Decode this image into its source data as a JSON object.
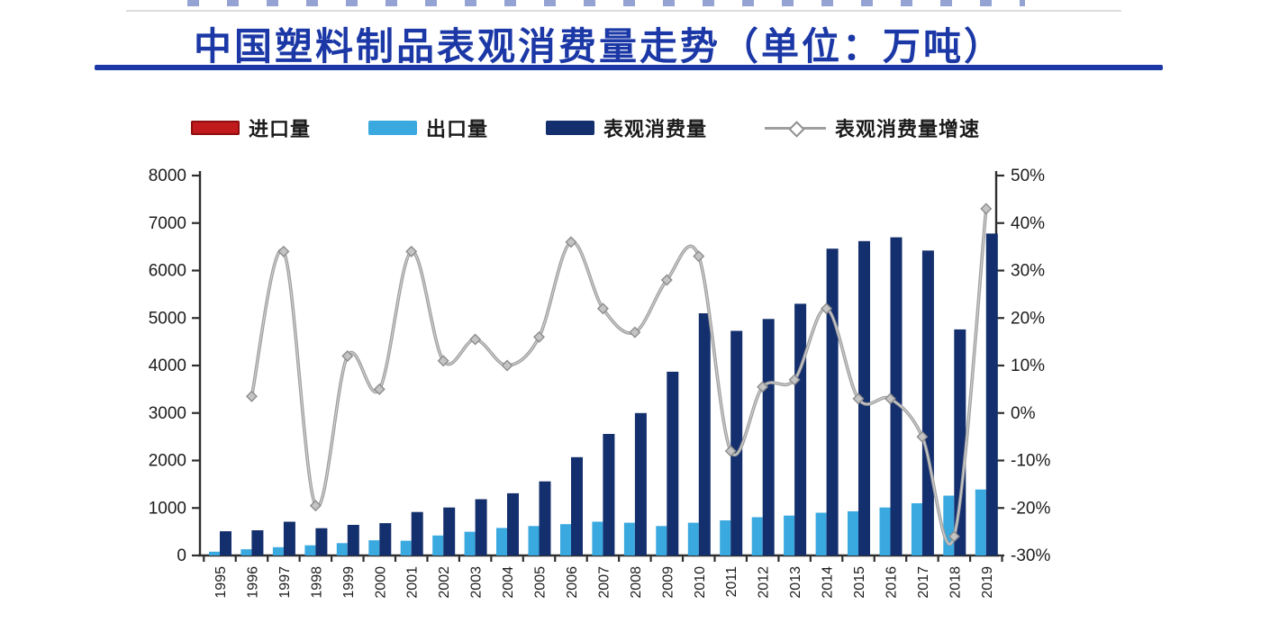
{
  "header": {
    "title": "中国塑料制品表观消费量走势（单位：万吨）",
    "title_color": "#1b38a6",
    "underline_color": "#1b38a6"
  },
  "legend": {
    "position": "top",
    "items": [
      {
        "label": "进口量",
        "swatch": "red-bar",
        "color": "#c11a1c"
      },
      {
        "label": "出口量",
        "swatch": "lightblue-bar",
        "color": "#3aa9e0"
      },
      {
        "label": "表观消费量",
        "swatch": "navy-bar",
        "color": "#142f6d"
      },
      {
        "label": "表观消费量增速",
        "swatch": "gray-line-diamond",
        "color": "#9f9f9f"
      }
    ]
  },
  "chart_data": {
    "type": "bar+line",
    "title": "中国塑料制品表观消费量走势（单位：万吨）",
    "unit": "万吨",
    "grid": false,
    "legend_position": "top",
    "categories": [
      "1995",
      "1996",
      "1997",
      "1998",
      "1999",
      "2000",
      "2001",
      "2002",
      "2003",
      "2004",
      "2005",
      "2006",
      "2007",
      "2008",
      "2009",
      "2010",
      "2011",
      "2012",
      "2013",
      "2014",
      "2015",
      "2016",
      "2017",
      "2018",
      "2019"
    ],
    "left_axis": {
      "min": 0,
      "max": 8000,
      "step": 1000,
      "ticks": [
        0,
        1000,
        2000,
        3000,
        4000,
        5000,
        6000,
        7000,
        8000
      ],
      "label_format": "number"
    },
    "right_axis": {
      "min": -30,
      "max": 50,
      "step": 10,
      "ticks": [
        50,
        40,
        30,
        20,
        10,
        0,
        -10,
        -20,
        -30
      ],
      "label_format": "percent"
    },
    "series": [
      {
        "name": "进口量",
        "type": "bar",
        "axis": "left",
        "color": "#c11a1c",
        "values": [],
        "note": "import bars are too small to be visible in the image (values ~0 at this scale)"
      },
      {
        "name": "出口量",
        "type": "bar",
        "axis": "left",
        "color": "#3aa9e0",
        "values": [
          80,
          130,
          175,
          215,
          260,
          320,
          310,
          420,
          500,
          580,
          620,
          660,
          710,
          690,
          620,
          690,
          740,
          805,
          840,
          900,
          930,
          1010,
          1100,
          1260,
          1390
        ]
      },
      {
        "name": "表观消费量",
        "type": "bar",
        "axis": "left",
        "color": "#142f6d",
        "values": [
          510,
          530,
          710,
          575,
          645,
          680,
          915,
          1010,
          1185,
          1310,
          1560,
          2070,
          2560,
          3000,
          3870,
          5100,
          4730,
          4980,
          5300,
          6460,
          6620,
          6700,
          6420,
          4760,
          6780
        ]
      },
      {
        "name": "表观消费量增速",
        "type": "line",
        "axis": "right",
        "unit": "%",
        "color": "#9f9f9f",
        "marker": "diamond",
        "values": [
          null,
          3.5,
          34,
          -19.5,
          12,
          5,
          34,
          11,
          15.5,
          10,
          16,
          36,
          22,
          17,
          28,
          33,
          -8,
          5.5,
          7,
          22,
          3,
          3,
          -5,
          -26,
          43
        ]
      }
    ]
  }
}
